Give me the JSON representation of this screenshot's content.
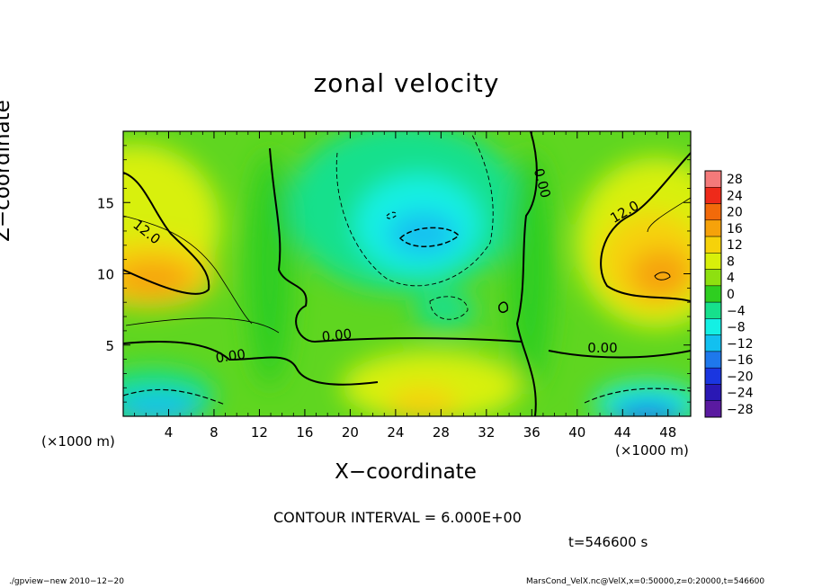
{
  "chart_data": {
    "type": "heatmap",
    "title": "zonal velocity",
    "xlabel": "X−coordinate",
    "ylabel": "Z−coordinate",
    "x_unit": "(×1000 m)",
    "xlim": [
      0,
      50
    ],
    "ylim": [
      0,
      20
    ],
    "x_ticks": [
      4,
      8,
      12,
      16,
      20,
      24,
      28,
      32,
      36,
      40,
      44,
      48
    ],
    "y_ticks": [
      5,
      10,
      15
    ],
    "colorbar": {
      "levels": [
        28,
        24,
        20,
        16,
        12,
        8,
        4,
        0,
        -4,
        -8,
        -12,
        -16,
        -20,
        -24,
        -28
      ],
      "labels": [
        "28",
        "24",
        "20",
        "16",
        "12",
        "8",
        "4",
        "0",
        "−4",
        "−8",
        "−12",
        "−16",
        "−20",
        "−24",
        "−28"
      ],
      "colors": [
        "#f47a7a",
        "#ee2a1a",
        "#f26a0a",
        "#f6a20a",
        "#f6d20a",
        "#d8f00a",
        "#8ee010",
        "#2ece20",
        "#16e08c",
        "#14f0e4",
        "#12c0f0",
        "#1e78ec",
        "#1a36e0",
        "#2a18b4",
        "#5a1aa0"
      ]
    },
    "contour_labels": [
      "12.0",
      "12.0",
      "0.00",
      "0.00",
      "0.00",
      "0.00"
    ],
    "contour_interval_text": "CONTOUR INTERVAL = 6.000E+00",
    "grid": false
  },
  "time_label": "t=546600 s",
  "footer_left": "./gpview−new  2010−12−20",
  "footer_right": "MarsCond_VelX.nc@VelX,x=0:50000,z=0:20000,t=546600"
}
